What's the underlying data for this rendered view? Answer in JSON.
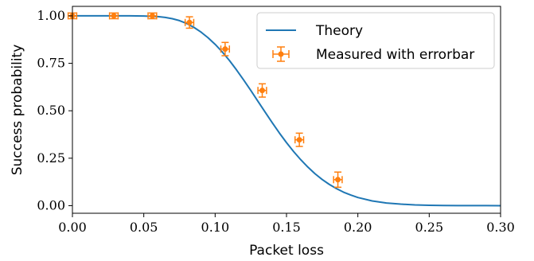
{
  "chart_data": {
    "type": "line",
    "title": "",
    "xlabel": "Packet loss",
    "ylabel": "Success probability",
    "xlim": [
      0.0,
      0.3
    ],
    "ylim": [
      -0.04,
      1.05
    ],
    "grid": false,
    "legend_position": "top-right",
    "x_ticks": [
      0.0,
      0.05,
      0.1,
      0.15,
      0.2,
      0.25,
      0.3
    ],
    "x_tick_labels": [
      "0.00",
      "0.05",
      "0.10",
      "0.15",
      "0.20",
      "0.25",
      "0.30"
    ],
    "y_ticks": [
      0.0,
      0.25,
      0.5,
      0.75,
      1.0
    ],
    "y_tick_labels": [
      "0.00",
      "0.25",
      "0.50",
      "0.75",
      "1.00"
    ],
    "series": [
      {
        "name": "Theory",
        "kind": "line",
        "color": "#1f77b4",
        "x": [
          0.0,
          0.01,
          0.02,
          0.03,
          0.04,
          0.05,
          0.06,
          0.065,
          0.07,
          0.075,
          0.08,
          0.085,
          0.09,
          0.095,
          0.1,
          0.105,
          0.11,
          0.115,
          0.12,
          0.125,
          0.13,
          0.135,
          0.14,
          0.145,
          0.15,
          0.155,
          0.16,
          0.165,
          0.17,
          0.175,
          0.18,
          0.185,
          0.19,
          0.195,
          0.2,
          0.21,
          0.22,
          0.23,
          0.24,
          0.25,
          0.26,
          0.27,
          0.28,
          0.29,
          0.3
        ],
        "y": [
          1.0,
          1.0,
          1.0,
          1.0,
          1.0,
          0.999,
          0.996,
          0.992,
          0.985,
          0.975,
          0.96,
          0.94,
          0.915,
          0.885,
          0.85,
          0.81,
          0.765,
          0.715,
          0.662,
          0.607,
          0.55,
          0.493,
          0.437,
          0.383,
          0.332,
          0.285,
          0.242,
          0.203,
          0.168,
          0.138,
          0.112,
          0.09,
          0.071,
          0.056,
          0.043,
          0.025,
          0.014,
          0.008,
          0.004,
          0.002,
          0.001,
          0.0005,
          0.0002,
          0.0001,
          0.0
        ]
      },
      {
        "name": "Measured with errorbar",
        "kind": "errorbar",
        "color": "#ff7f0e",
        "x": [
          0.0,
          0.029,
          0.056,
          0.082,
          0.107,
          0.133,
          0.159,
          0.186
        ],
        "y": [
          1.0,
          1.0,
          1.0,
          0.965,
          0.825,
          0.607,
          0.347,
          0.137
        ],
        "xerr": [
          0.003,
          0.003,
          0.003,
          0.003,
          0.003,
          0.003,
          0.003,
          0.003
        ],
        "yerr": [
          0.015,
          0.015,
          0.015,
          0.03,
          0.035,
          0.035,
          0.035,
          0.04
        ]
      }
    ]
  }
}
